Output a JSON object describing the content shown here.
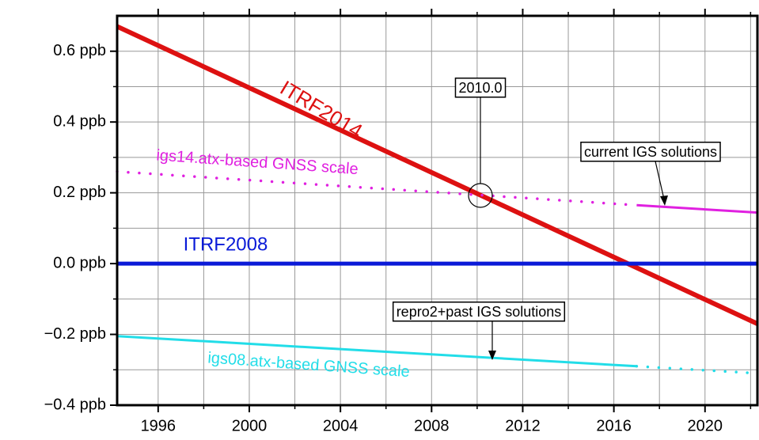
{
  "chart_data": {
    "type": "line",
    "xlim": [
      1994.2,
      2022.3
    ],
    "ylim": [
      -0.4,
      0.7
    ],
    "xticks": [
      1996,
      2000,
      2004,
      2008,
      2012,
      2016,
      2020
    ],
    "xminorticks": [
      1998,
      2002,
      2006,
      2010,
      2014,
      2018,
      2022
    ],
    "yticks": [
      {
        "value": -0.4,
        "label": "−0.4 ppb"
      },
      {
        "value": -0.2,
        "label": "−0.2 ppb"
      },
      {
        "value": 0.0,
        "label": "0.0 ppb"
      },
      {
        "value": 0.2,
        "label": "0.2 ppb"
      },
      {
        "value": 0.4,
        "label": "0.4 ppb"
      },
      {
        "value": 0.6,
        "label": "0.6 ppb"
      }
    ],
    "yminorticks": [
      -0.3,
      -0.1,
      0.1,
      0.3,
      0.5
    ],
    "grid": true,
    "series": [
      {
        "name": "ITRF2014",
        "color": "#dd1111",
        "x": [
          1994.2,
          2022.3
        ],
        "values": [
          0.67,
          -0.17
        ],
        "segment_styles": [
          "solid"
        ]
      },
      {
        "name": "ITRF2008",
        "color": "#0a1ad8",
        "x": [
          1994.2,
          2022.3
        ],
        "values": [
          0.0,
          0.0
        ],
        "segment_styles": [
          "solid"
        ]
      },
      {
        "name": "igs14.atx-based GNSS scale",
        "color": "#e020e0",
        "x": [
          1994.2,
          2017.0,
          2022.3
        ],
        "values": [
          0.26,
          0.165,
          0.144
        ],
        "segment_styles": [
          "dotted",
          "solid"
        ]
      },
      {
        "name": "igs08.atx-based GNSS scale",
        "color": "#22dde8",
        "x": [
          1994.2,
          2017.0,
          2022.3
        ],
        "values": [
          -0.205,
          -0.29,
          -0.31
        ],
        "segment_styles": [
          "solid",
          "dotted"
        ]
      }
    ],
    "annotations": [
      "2010.0",
      "current IGS solutions",
      "repro2+past IGS solutions"
    ]
  }
}
